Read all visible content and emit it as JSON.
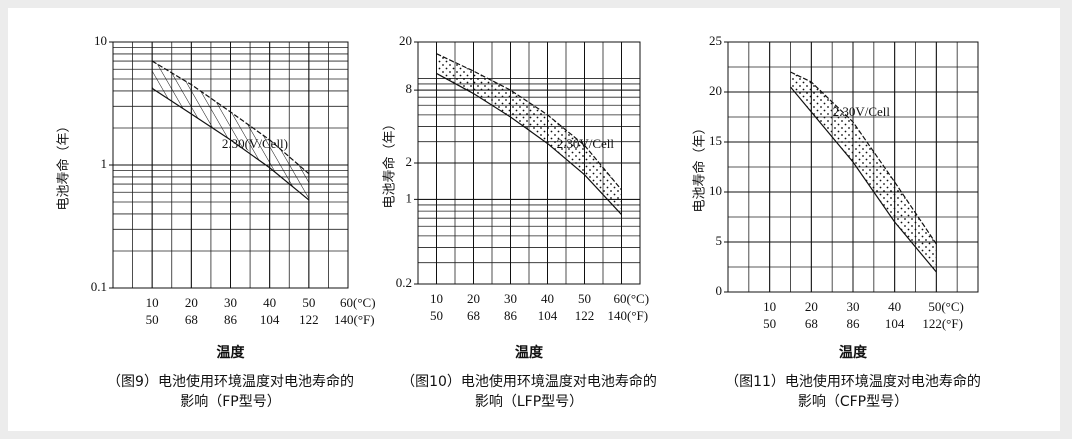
{
  "chart_data": [
    {
      "type": "band",
      "pattern": "hatch",
      "color": "#111111",
      "y_label": "电池寿命（年）",
      "x_label": "温度",
      "caption": "（图9）电池使用环境温度对电池寿命的影响（FP型号）",
      "annotation": "2.30(V/Cell)",
      "x": [
        10,
        20,
        30,
        40,
        50
      ],
      "series": [
        {
          "values": [
            7,
            4.5,
            2.7,
            1.6,
            0.85
          ]
        },
        {
          "values": [
            4.2,
            2.6,
            1.6,
            0.95,
            0.52
          ]
        }
      ],
      "xlim": [
        0,
        60
      ],
      "ylim": [
        0.1,
        10
      ],
      "yscale": "log",
      "grid": true,
      "xticks": [
        10,
        20,
        30,
        40,
        50,
        {
          "value": 60,
          "label": "60(°C)"
        }
      ],
      "xticks_f": [
        {
          "value": 10,
          "label": "50"
        },
        {
          "value": 20,
          "label": "68"
        },
        {
          "value": 30,
          "label": "86"
        },
        {
          "value": 40,
          "label": "104"
        },
        {
          "value": 50,
          "label": "122"
        },
        {
          "value": 60,
          "label": "140(°F)"
        }
      ],
      "yticks": [
        0.1,
        1,
        10
      ]
    },
    {
      "type": "band",
      "pattern": "dots",
      "color": "#111111",
      "y_label": "电池寿命（年）",
      "x_label": "温度",
      "caption": "（图10）电池使用环境温度对电池寿命的影响（LFP型号）",
      "annotation": "2.30V/Cell",
      "x": [
        10,
        20,
        30,
        40,
        50,
        60
      ],
      "series": [
        {
          "values": [
            16,
            11.5,
            8,
            5,
            2.8,
            1.2
          ]
        },
        {
          "values": [
            11,
            7.5,
            4.8,
            2.9,
            1.6,
            0.75
          ]
        }
      ],
      "xlim": [
        5,
        65
      ],
      "ylim": [
        0.2,
        20
      ],
      "yscale": "log",
      "grid": true,
      "xticks": [
        10,
        20,
        30,
        40,
        50,
        {
          "value": 60,
          "label": "60(°C)"
        }
      ],
      "xticks_f": [
        {
          "value": 10,
          "label": "50"
        },
        {
          "value": 20,
          "label": "68"
        },
        {
          "value": 30,
          "label": "86"
        },
        {
          "value": 40,
          "label": "104"
        },
        {
          "value": 50,
          "label": "122"
        },
        {
          "value": 60,
          "label": "140(°F)"
        }
      ],
      "yticks": [
        0.2,
        1,
        2,
        8,
        20
      ]
    },
    {
      "type": "band",
      "pattern": "dots",
      "color": "#111111",
      "y_label": "电池寿命（年）",
      "x_label": "温度",
      "caption": "（图11）电池使用环境温度对电池寿命的影响（CFP型号）",
      "annotation": "2.30V/Cell",
      "x": [
        15,
        20,
        30,
        40,
        50
      ],
      "series": [
        {
          "values": [
            22,
            21,
            17,
            11,
            4.8
          ]
        },
        {
          "values": [
            20.5,
            18,
            13,
            7,
            2
          ]
        }
      ],
      "xlim": [
        0,
        60
      ],
      "ylim": [
        0,
        25
      ],
      "yscale": "linear",
      "grid": true,
      "xticks": [
        10,
        20,
        30,
        40,
        {
          "value": 50,
          "label": "50(°C)"
        }
      ],
      "xticks_f": [
        {
          "value": 10,
          "label": "50"
        },
        {
          "value": 20,
          "label": "68"
        },
        {
          "value": 30,
          "label": "86"
        },
        {
          "value": 40,
          "label": "104"
        },
        {
          "value": 50,
          "label": "122(°F)"
        }
      ],
      "yticks": [
        0,
        5,
        10,
        15,
        20,
        25
      ]
    }
  ]
}
